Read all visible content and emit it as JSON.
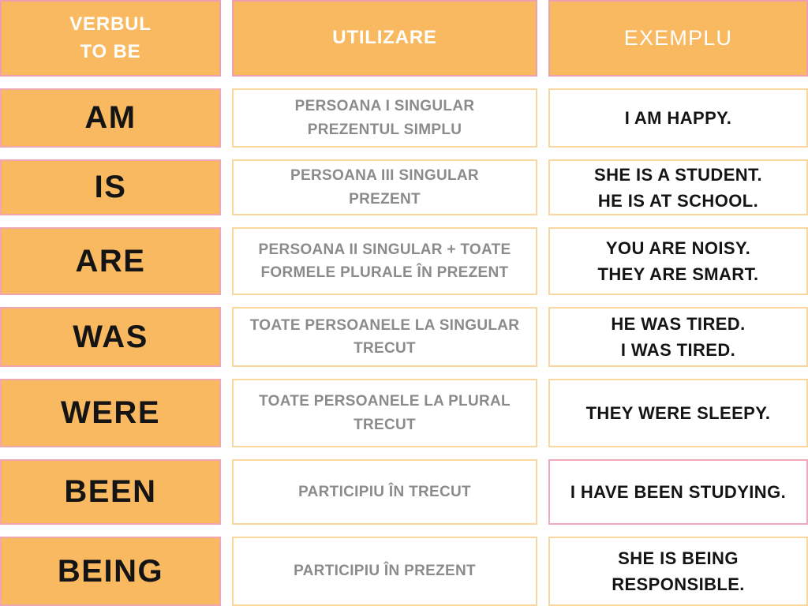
{
  "colors": {
    "cell_orange": "#f9b960",
    "header_border_pink": "#ee9fae",
    "verb_border_pink": "#efa6b1",
    "white_cell_border_orange": "#fad7a1",
    "been_example_border_pink": "#efabbb",
    "usage_text_gray": "#8b8b8b",
    "text_black": "#141414",
    "header_text_white": "#ffffff"
  },
  "chart_data": {
    "type": "table",
    "columns": [
      "VERBUL\nTO BE",
      "UTILIZARE",
      "EXEMPLU"
    ],
    "rows": [
      {
        "verb": "AM",
        "usage": "PERSOANA I SINGULAR\nPREZENTUL SIMPLU",
        "example": "I AM HAPPY."
      },
      {
        "verb": "IS",
        "usage": "PERSOANA III SINGULAR\nPREZENT",
        "example": "SHE IS A STUDENT.\nHE IS AT SCHOOL."
      },
      {
        "verb": "ARE",
        "usage": "PERSOANA II SINGULAR + TOATE\nFORMELE PLURALE ÎN PREZENT",
        "example": "YOU ARE NOISY.\nTHEY ARE SMART."
      },
      {
        "verb": "WAS",
        "usage": "TOATE PERSOANELE LA SINGULAR\nTRECUT",
        "example": "HE WAS TIRED.\nI WAS TIRED."
      },
      {
        "verb": "WERE",
        "usage": "TOATE PERSOANELE LA PLURAL\nTRECUT",
        "example": "THEY WERE SLEEPY."
      },
      {
        "verb": "BEEN",
        "usage": "PARTICIPIU ÎN TRECUT",
        "example": "I HAVE BEEN STUDYING."
      },
      {
        "verb": "BEING",
        "usage": "PARTICIPIU ÎN PREZENT",
        "example": "SHE IS BEING\nRESPONSIBLE."
      }
    ]
  }
}
